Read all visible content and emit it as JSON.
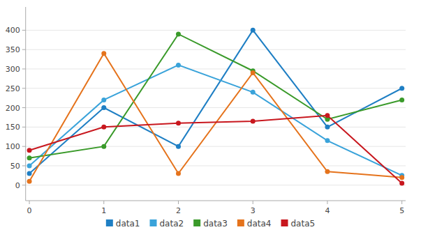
{
  "chart_data": {
    "type": "line",
    "x": [
      0,
      1,
      2,
      3,
      4,
      5
    ],
    "series": [
      {
        "name": "data1",
        "color": "#1f7fc4",
        "values": [
          30,
          200,
          100,
          400,
          150,
          250
        ]
      },
      {
        "name": "data2",
        "color": "#3aa3da",
        "values": [
          50,
          220,
          310,
          240,
          115,
          25
        ]
      },
      {
        "name": "data3",
        "color": "#3a9a2a",
        "values": [
          70,
          100,
          390,
          295,
          170,
          220
        ]
      },
      {
        "name": "data4",
        "color": "#e5731c",
        "values": [
          10,
          340,
          30,
          290,
          35,
          20
        ]
      },
      {
        "name": "data5",
        "color": "#c8171e",
        "values": [
          90,
          150,
          160,
          165,
          180,
          5
        ]
      }
    ],
    "xlim": [
      -0.05,
      5.05
    ],
    "xticks": [
      0,
      1,
      2,
      3,
      4,
      5
    ],
    "ylim": [
      -40,
      460
    ],
    "yticks": [
      0,
      50,
      100,
      150,
      200,
      250,
      300,
      350,
      400
    ],
    "grid": true,
    "legend": "bottom",
    "marker": "circle"
  }
}
